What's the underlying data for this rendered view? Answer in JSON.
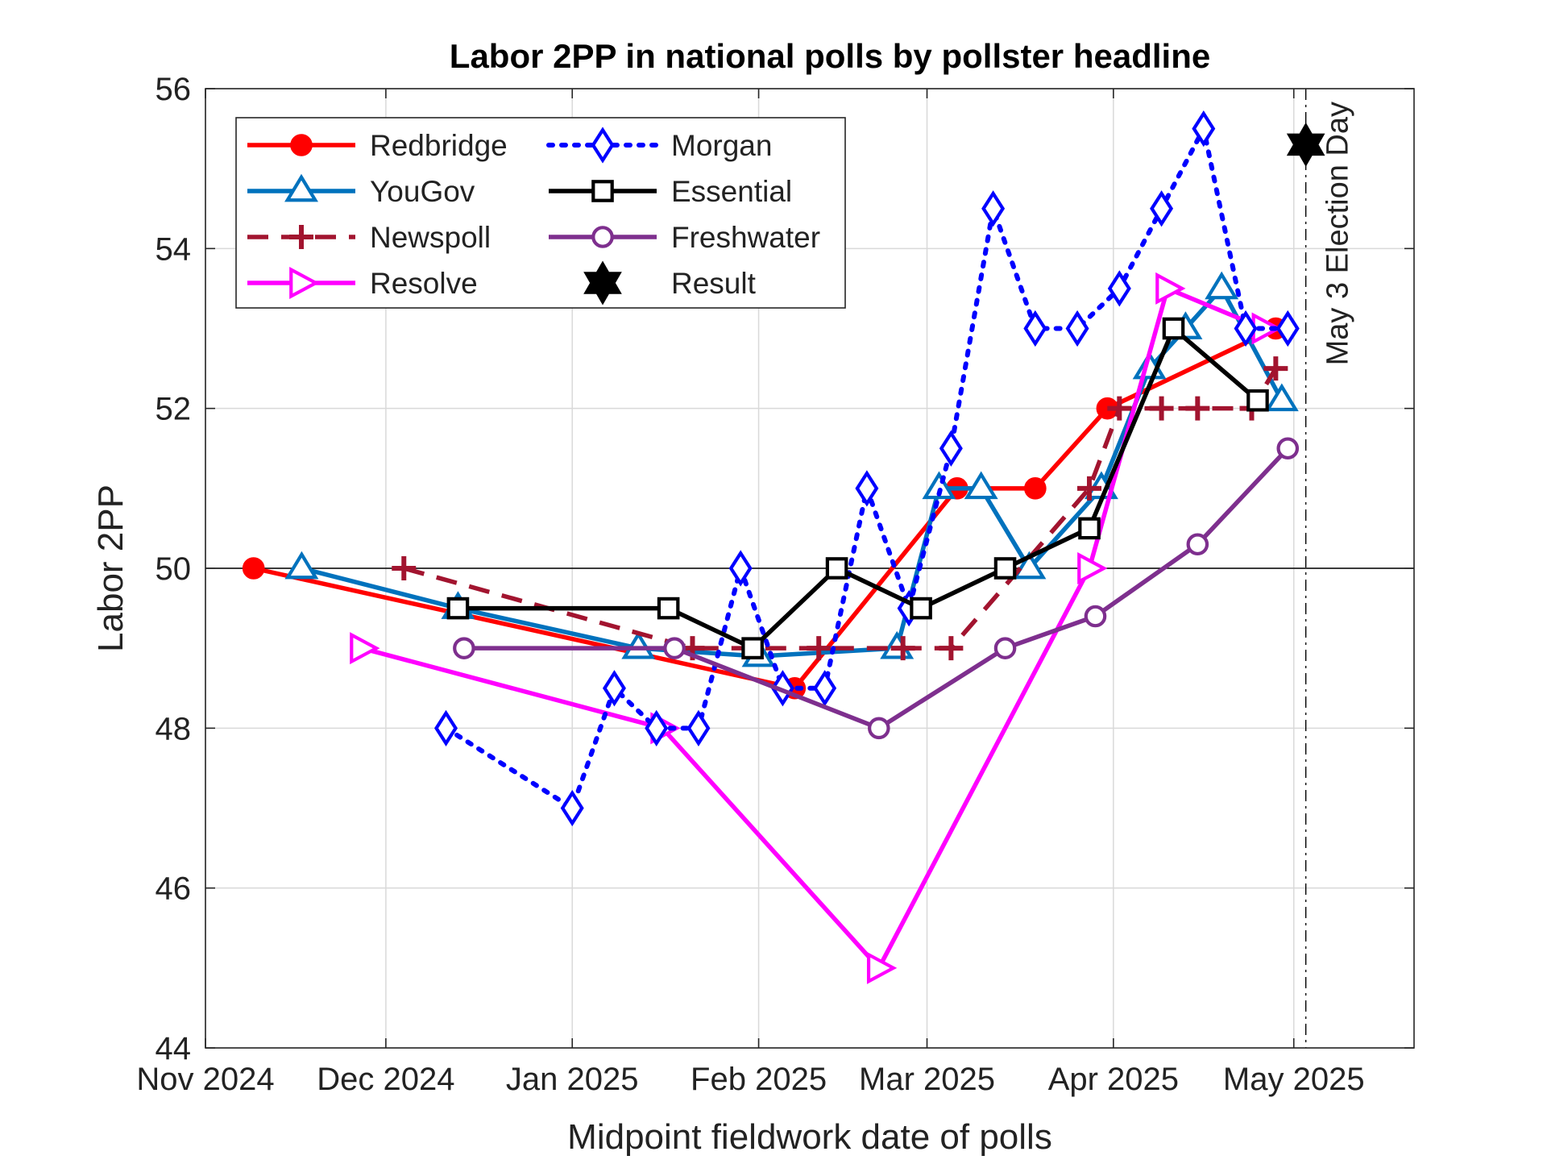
{
  "chart_data": {
    "type": "line",
    "title": "Labor 2PP in national polls by pollster headline",
    "xlabel": "Midpoint fieldwork date of polls",
    "ylabel": "Labor 2PP",
    "xlim": [
      "2024-11-01",
      "2025-05-21"
    ],
    "ylim": [
      44,
      56
    ],
    "x_ticks": [
      {
        "date": "2024-11-01",
        "label": "Nov 2024"
      },
      {
        "date": "2024-12-01",
        "label": "Dec 2024"
      },
      {
        "date": "2025-01-01",
        "label": "Jan 2025"
      },
      {
        "date": "2025-02-01",
        "label": "Feb 2025"
      },
      {
        "date": "2025-03-01",
        "label": "Mar 2025"
      },
      {
        "date": "2025-04-01",
        "label": "Apr 2025"
      },
      {
        "date": "2025-05-01",
        "label": "May 2025"
      }
    ],
    "y_ticks": [
      44,
      46,
      48,
      50,
      52,
      54,
      56
    ],
    "grid": true,
    "legend_position": "top-left",
    "reference_lines": [
      {
        "orientation": "horizontal",
        "y": 50,
        "style": "solid",
        "color": "#000000"
      },
      {
        "orientation": "vertical",
        "x": "2025-05-03",
        "style": "dash-dot",
        "color": "#000000",
        "label": "May 3 Election Day"
      }
    ],
    "series": [
      {
        "name": "Redbridge",
        "color": "#ff0000",
        "line": "solid",
        "marker": "circle",
        "filled": true,
        "points": [
          [
            "2024-11-09",
            50
          ],
          [
            "2025-02-07",
            48.5
          ],
          [
            "2025-03-06",
            51
          ],
          [
            "2025-03-19",
            51
          ],
          [
            "2025-03-31",
            52
          ],
          [
            "2025-04-28",
            53
          ]
        ]
      },
      {
        "name": "YouGov",
        "color": "#0072bd",
        "line": "solid",
        "marker": "triangle-up",
        "filled": false,
        "points": [
          [
            "2024-11-17",
            50
          ],
          [
            "2024-12-13",
            49.5
          ],
          [
            "2025-01-12",
            49
          ],
          [
            "2025-02-01",
            48.9
          ],
          [
            "2025-02-24",
            49
          ],
          [
            "2025-03-03",
            51
          ],
          [
            "2025-03-10",
            51
          ],
          [
            "2025-03-18",
            50
          ],
          [
            "2025-03-30",
            51
          ],
          [
            "2025-04-07",
            52.5
          ],
          [
            "2025-04-13",
            53
          ],
          [
            "2025-04-19",
            53.5
          ],
          [
            "2025-04-29",
            52.1
          ]
        ]
      },
      {
        "name": "Newspoll",
        "color": "#a2142f",
        "line": "dashed",
        "marker": "plus",
        "filled": false,
        "points": [
          [
            "2024-12-04",
            50
          ],
          [
            "2025-01-21",
            49
          ],
          [
            "2025-02-11",
            49
          ],
          [
            "2025-02-25",
            49
          ],
          [
            "2025-03-05",
            49
          ],
          [
            "2025-03-28",
            51
          ],
          [
            "2025-04-02",
            52
          ],
          [
            "2025-04-09",
            52
          ],
          [
            "2025-04-15",
            52
          ],
          [
            "2025-04-24",
            52
          ],
          [
            "2025-04-28",
            52.5
          ]
        ]
      },
      {
        "name": "Resolve",
        "color": "#ff00ff",
        "line": "solid",
        "marker": "triangle-right",
        "filled": false,
        "points": [
          [
            "2024-11-27",
            49
          ],
          [
            "2025-01-16",
            48
          ],
          [
            "2025-02-21",
            45
          ],
          [
            "2025-03-28",
            50
          ],
          [
            "2025-04-10",
            53.5
          ],
          [
            "2025-04-26",
            53
          ]
        ]
      },
      {
        "name": "Morgan",
        "color": "#0000ff",
        "line": "dotted",
        "marker": "diamond",
        "filled": false,
        "points": [
          [
            "2024-12-11",
            48
          ],
          [
            "2025-01-01",
            47
          ],
          [
            "2025-01-08",
            48.5
          ],
          [
            "2025-01-15",
            48
          ],
          [
            "2025-01-22",
            48
          ],
          [
            "2025-01-29",
            50
          ],
          [
            "2025-02-05",
            48.5
          ],
          [
            "2025-02-12",
            48.5
          ],
          [
            "2025-02-19",
            51
          ],
          [
            "2025-02-26",
            49.5
          ],
          [
            "2025-03-05",
            51.5
          ],
          [
            "2025-03-12",
            54.5
          ],
          [
            "2025-03-19",
            53
          ],
          [
            "2025-03-26",
            53
          ],
          [
            "2025-04-02",
            53.5
          ],
          [
            "2025-04-09",
            54.5
          ],
          [
            "2025-04-16",
            55.5
          ],
          [
            "2025-04-23",
            53
          ],
          [
            "2025-04-30",
            53
          ]
        ]
      },
      {
        "name": "Essential",
        "color": "#000000",
        "line": "solid",
        "marker": "square",
        "filled": false,
        "points": [
          [
            "2024-12-13",
            49.5
          ],
          [
            "2025-01-17",
            49.5
          ],
          [
            "2025-01-31",
            49
          ],
          [
            "2025-02-14",
            50
          ],
          [
            "2025-02-28",
            49.5
          ],
          [
            "2025-03-14",
            50
          ],
          [
            "2025-03-28",
            50.5
          ],
          [
            "2025-04-11",
            53
          ],
          [
            "2025-04-25",
            52.1
          ]
        ]
      },
      {
        "name": "Freshwater",
        "color": "#7e2f8e",
        "line": "solid",
        "marker": "circle",
        "filled": false,
        "points": [
          [
            "2024-12-14",
            49
          ],
          [
            "2025-01-18",
            49
          ],
          [
            "2025-02-21",
            48
          ],
          [
            "2025-03-14",
            49
          ],
          [
            "2025-03-29",
            49.4
          ],
          [
            "2025-04-15",
            50.3
          ],
          [
            "2025-04-30",
            51.5
          ]
        ]
      },
      {
        "name": "Result",
        "color": "#000000",
        "line": "none",
        "marker": "hexagram",
        "filled": true,
        "points": [
          [
            "2025-05-03",
            55.3
          ]
        ]
      }
    ]
  }
}
